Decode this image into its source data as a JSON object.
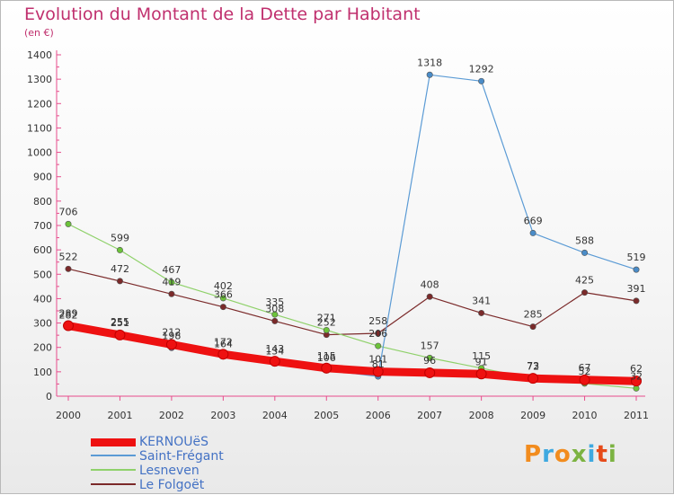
{
  "title": "Evolution du Montant de la Dette par Habitant",
  "subtitle": "(en €)",
  "logo": {
    "text": "Proxiti",
    "colors": [
      "#f28c1e",
      "#3fa9e0",
      "#f28c1e",
      "#7cb342",
      "#3fa9e0",
      "#e64a19",
      "#7cb342"
    ]
  },
  "chart_data": {
    "type": "line",
    "title": "Evolution du Montant de la Dette par Habitant",
    "subtitle": "(en €)",
    "xlabel": "",
    "ylabel": "",
    "x": [
      "2000",
      "2001",
      "2002",
      "2003",
      "2004",
      "2005",
      "2006",
      "2007",
      "2008",
      "2009",
      "2010",
      "2011"
    ],
    "ylim": [
      0,
      1400
    ],
    "yticks": [
      "0",
      "100",
      "200",
      "300",
      "400",
      "500",
      "600",
      "700",
      "800",
      "900",
      "1000",
      "1100",
      "1200",
      "1300",
      "1400"
    ],
    "grid": false,
    "legend_position": "bottom-left",
    "series": [
      {
        "name": "Le Folgoët",
        "color": "#7b2a2a",
        "line_width": 1.2,
        "marker": "#7b2a2a",
        "values": [
          522,
          472,
          419,
          366,
          308,
          252,
          258,
          408,
          341,
          285,
          425,
          391
        ],
        "labels": [
          "522",
          "472",
          "419",
          "366",
          "308",
          "252",
          "258",
          "408",
          "341",
          "285",
          "425",
          "391"
        ]
      },
      {
        "name": "Lesneven",
        "color": "#8fd16a",
        "line_width": 1.2,
        "marker": "#6cc33a",
        "values": [
          706,
          599,
          467,
          402,
          335,
          271,
          206,
          157,
          115,
          72,
          52,
          32
        ],
        "labels": [
          "706",
          "599",
          "467",
          "402",
          "335",
          "271",
          "206",
          "157",
          "115",
          "72",
          "52",
          "32"
        ]
      },
      {
        "name": "Saint-Frégant",
        "color": "#5b9bd5",
        "line_width": 1.2,
        "marker": "#4a8cc8",
        "values": [
          282,
          255,
          198,
          164,
          134,
          106,
          81,
          1318,
          1292,
          669,
          588,
          519
        ],
        "labels": [
          "282",
          "255",
          "198",
          "164",
          "134",
          "106",
          "81",
          "1318",
          "1292",
          "669",
          "588",
          "519"
        ]
      },
      {
        "name": "KERNOUëS",
        "color": "#ee1111",
        "line_width": 9,
        "marker": "#ee1111",
        "values": [
          289,
          251,
          212,
          172,
          143,
          115,
          101,
          96,
          91,
          73,
          67,
          62
        ],
        "labels": [
          "289",
          "251",
          "212",
          "172",
          "143",
          "115",
          "101",
          "96",
          "91",
          "73",
          "67",
          "62"
        ]
      }
    ]
  },
  "legend": [
    {
      "label": "KERNOUëS",
      "color": "#ee1111",
      "thickness": 9
    },
    {
      "label": "Saint-Frégant",
      "color": "#5b9bd5",
      "thickness": 2
    },
    {
      "label": "Lesneven",
      "color": "#8fd16a",
      "thickness": 2
    },
    {
      "label": "Le Folgoët",
      "color": "#7b2a2a",
      "thickness": 2
    }
  ]
}
